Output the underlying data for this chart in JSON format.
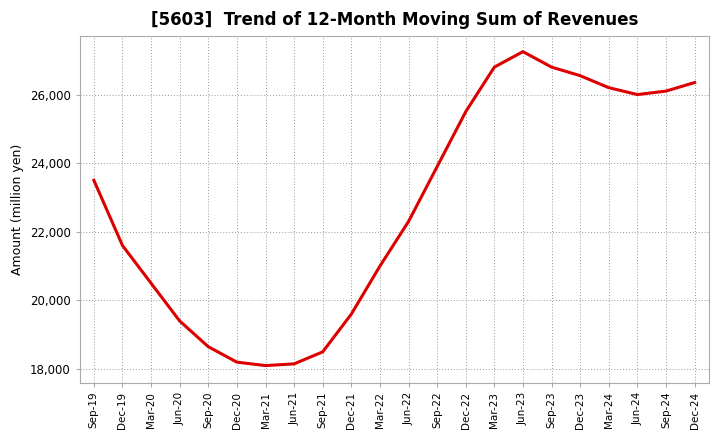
{
  "title": "[5603]  Trend of 12-Month Moving Sum of Revenues",
  "ylabel": "Amount (million yen)",
  "line_color": "#dd0000",
  "background_color": "#ffffff",
  "plot_bg_color": "#ffffff",
  "grid_color": "#999999",
  "ylim": [
    17600,
    27700
  ],
  "yticks": [
    18000,
    20000,
    22000,
    24000,
    26000
  ],
  "x_labels": [
    "Sep-19",
    "Dec-19",
    "Mar-20",
    "Jun-20",
    "Sep-20",
    "Dec-20",
    "Mar-21",
    "Jun-21",
    "Sep-21",
    "Dec-21",
    "Mar-22",
    "Jun-22",
    "Sep-22",
    "Dec-22",
    "Mar-23",
    "Jun-23",
    "Sep-23",
    "Dec-23",
    "Mar-24",
    "Jun-24",
    "Sep-24",
    "Dec-24"
  ],
  "values": [
    23500,
    21600,
    20500,
    19400,
    18650,
    18200,
    18100,
    18150,
    18500,
    19600,
    21000,
    22300,
    23900,
    25500,
    26800,
    27250,
    26800,
    26550,
    26200,
    26000,
    26100,
    26350
  ]
}
